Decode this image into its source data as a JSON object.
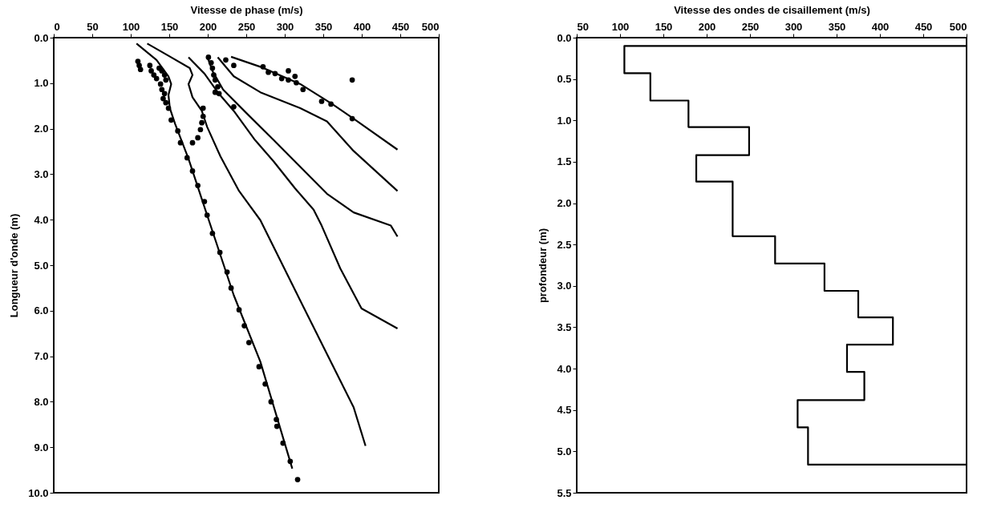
{
  "chart_data": [
    {
      "type": "scatter",
      "xlabel": "Vitesse de phase (m/s)",
      "ylabel": "Longueur d'onde (m)",
      "xlim": [
        0,
        500
      ],
      "xticks": [
        0,
        50,
        100,
        150,
        200,
        250,
        300,
        350,
        400,
        450,
        500
      ],
      "ylim": [
        10,
        0
      ],
      "yticks": [
        {
          "value": 0,
          "label": "0.0"
        },
        {
          "value": 1,
          "label": "1.0"
        },
        {
          "value": 2,
          "label": "2.0"
        },
        {
          "value": 3,
          "label": "3.0"
        },
        {
          "value": 4,
          "label": "4.0"
        },
        {
          "value": 5,
          "label": "5.0"
        },
        {
          "value": 6,
          "label": "6.0"
        },
        {
          "value": 7,
          "label": "7.0"
        },
        {
          "value": 8,
          "label": "8.0"
        },
        {
          "value": 9,
          "label": "9.0"
        },
        {
          "value": 10,
          "label": "10.0"
        }
      ],
      "grid": false,
      "legend": false,
      "series": [
        {
          "marker": "circle",
          "color": "#000000",
          "x": [
            109.3,
            111.0,
            112.7,
            124.8,
            126.6,
            130.0,
            133.5,
            136.9,
            140.4,
            143.9,
            145.6,
            138.7,
            140.4,
            143.9,
            142.1,
            145.6,
            149.0,
            152.5,
            161.1,
            164.6,
            173.2,
            180.2,
            187.1,
            195.7,
            199.2,
            206.1,
            215.8,
            225.1,
            230.3,
            240.7,
            247.5,
            253.5,
            266.6,
            274.6,
            282.2,
            289.1,
            289.8,
            297.7,
            307.1,
            316.7,
            194.0,
            194.0,
            192.3,
            190.5,
            187.1,
            180.2,
            200.9,
            204.4,
            206.1,
            207.8,
            209.6,
            213.0,
            209.6,
            214.7,
            233.8,
            223.4,
            233.8,
            271.8,
            278.7,
            287.4,
            296.0,
            304.7,
            304.7,
            313.3,
            315.0,
            323.7,
            347.9,
            360.0,
            387.6,
            387.6
          ],
          "values": [
            0.52,
            0.61,
            0.7,
            0.61,
            0.73,
            0.82,
            0.9,
            0.67,
            0.73,
            0.82,
            0.93,
            1.02,
            1.14,
            1.23,
            1.34,
            1.43,
            1.55,
            1.81,
            2.05,
            2.31,
            2.64,
            2.93,
            3.25,
            3.6,
            3.9,
            4.3,
            4.72,
            5.15,
            5.5,
            5.98,
            6.33,
            6.7,
            7.23,
            7.61,
            8.0,
            8.39,
            8.54,
            8.91,
            9.31,
            9.71,
            1.55,
            1.73,
            1.87,
            2.02,
            2.2,
            2.31,
            0.43,
            0.55,
            0.67,
            0.82,
            0.93,
            1.08,
            1.2,
            1.23,
            1.52,
            0.49,
            0.61,
            0.64,
            0.76,
            0.79,
            0.9,
            0.73,
            0.93,
            0.85,
            0.99,
            1.14,
            1.4,
            1.46,
            0.93,
            1.78
          ]
        },
        {
          "type": "line",
          "color": "#000000",
          "x": [
            107.5,
            133.5,
            149.0,
            152.5,
            149.0,
            150.8,
            157.7,
            175.0,
            199.2,
            233.8,
            268.3,
            309.8
          ],
          "values": [
            0.13,
            0.49,
            0.85,
            1.02,
            1.26,
            1.55,
            1.9,
            2.66,
            3.9,
            5.66,
            7.12,
            9.47
          ]
        },
        {
          "type": "line",
          "color": "#000000",
          "x": [
            121.4,
            147.3,
            176.7,
            180.2,
            175.0,
            180.2,
            192.3,
            199.2,
            216.5,
            240.7,
            268.3,
            285.6,
            320.2,
            354.8,
            389.4,
            404.9
          ],
          "values": [
            0.13,
            0.38,
            0.67,
            0.82,
            1.02,
            1.31,
            1.61,
            1.96,
            2.61,
            3.37,
            4.01,
            4.6,
            5.78,
            6.95,
            8.12,
            8.97
          ]
        },
        {
          "type": "line",
          "color": "#000000",
          "x": [
            175.0,
            195.7,
            213.0,
            233.8,
            261.4,
            285.6,
            313.3,
            337.5,
            347.9,
            372.1,
            399.7,
            446.4
          ],
          "values": [
            0.43,
            0.79,
            1.2,
            1.61,
            2.25,
            2.72,
            3.31,
            3.78,
            4.13,
            5.07,
            5.95,
            6.39
          ]
        },
        {
          "type": "line",
          "color": "#000000",
          "x": [
            199.2,
            206.1,
            219.9,
            251.0,
            285.6,
            320.2,
            354.8,
            389.4,
            437.8,
            446.4
          ],
          "values": [
            0.41,
            0.73,
            1.14,
            1.67,
            2.25,
            2.84,
            3.43,
            3.84,
            4.13,
            4.37
          ]
        },
        {
          "type": "line",
          "color": "#000000",
          "x": [
            213.0,
            233.8,
            268.3,
            320.2,
            354.8,
            389.4,
            446.4
          ],
          "values": [
            0.43,
            0.85,
            1.2,
            1.55,
            1.84,
            2.49,
            3.37
          ]
        },
        {
          "type": "line",
          "color": "#000000",
          "x": [
            230.3,
            268.3,
            320.2,
            361.7,
            389.4,
            446.4
          ],
          "values": [
            0.42,
            0.64,
            1.02,
            1.46,
            1.78,
            2.46
          ]
        }
      ]
    },
    {
      "type": "line",
      "xlabel": "Vitesse des ondes de cisaillement (m/s)",
      "ylabel": "profondeur (m)",
      "xlim": [
        50,
        500
      ],
      "xticks": [
        50,
        100,
        150,
        200,
        250,
        300,
        350,
        400,
        450,
        500
      ],
      "ylim": [
        5.5,
        0
      ],
      "yticks": [
        {
          "value": 0,
          "label": "0.0"
        },
        {
          "value": 0.5,
          "label": "0.5"
        },
        {
          "value": 1,
          "label": "1.0"
        },
        {
          "value": 1.5,
          "label": "1.5"
        },
        {
          "value": 2,
          "label": "2.0"
        },
        {
          "value": 2.5,
          "label": "2.5"
        },
        {
          "value": 3,
          "label": "3.0"
        },
        {
          "value": 3.5,
          "label": "3.5"
        },
        {
          "value": 4,
          "label": "4.0"
        },
        {
          "value": 4.5,
          "label": "4.5"
        },
        {
          "value": 5,
          "label": "5.0"
        },
        {
          "value": 5.5,
          "label": "5.5"
        }
      ],
      "grid": false,
      "legend": false,
      "series": [
        {
          "color": "#000000",
          "x": [
            500,
            105,
            105,
            135,
            135,
            179,
            179,
            249,
            249,
            188,
            188,
            230,
            230,
            279,
            279,
            336,
            336,
            375,
            375,
            415,
            415,
            362,
            362,
            382,
            382,
            305,
            305,
            317,
            317,
            500
          ],
          "values": [
            0.1,
            0.1,
            0.43,
            0.43,
            0.76,
            0.76,
            1.08,
            1.08,
            1.42,
            1.42,
            1.74,
            1.74,
            2.4,
            2.4,
            2.73,
            2.73,
            3.06,
            3.06,
            3.38,
            3.38,
            3.71,
            3.71,
            4.04,
            4.04,
            4.38,
            4.38,
            4.71,
            4.71,
            5.16,
            5.16
          ]
        }
      ]
    }
  ]
}
